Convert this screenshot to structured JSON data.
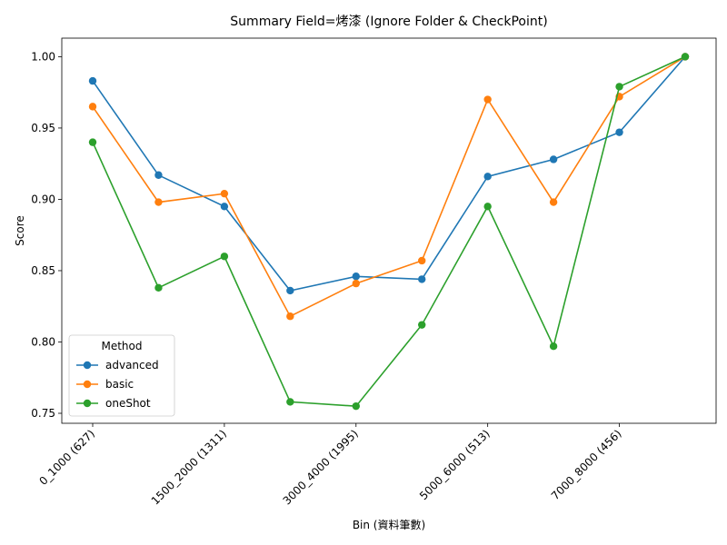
{
  "chart_data": {
    "type": "line",
    "title": "Summary Field=烤漆 (Ignore Folder & CheckPoint)",
    "xlabel": "Bin (資料筆數)",
    "ylabel": "Score",
    "x_tick_labels": [
      "0_1000 (627)",
      "1500_2000 (1311)",
      "3000_4000 (1995)",
      "5000_6000 (513)",
      "7000_8000 (456)"
    ],
    "x_tick_positions": [
      0,
      2,
      4,
      6,
      8
    ],
    "x_count": 10,
    "y_ticks": [
      "0.75",
      "0.80",
      "0.85",
      "0.90",
      "0.95",
      "1.00"
    ],
    "ylim": [
      0.743,
      1.013
    ],
    "legend": {
      "title": "Method",
      "placement": "lower-left"
    },
    "series": [
      {
        "name": "advanced",
        "color": "#1f77b4",
        "values": [
          0.983,
          0.917,
          0.895,
          0.836,
          0.846,
          0.844,
          0.916,
          0.928,
          0.947,
          1.0
        ]
      },
      {
        "name": "basic",
        "color": "#ff7f0e",
        "values": [
          0.965,
          0.898,
          0.904,
          0.818,
          0.841,
          0.857,
          0.97,
          0.898,
          0.972,
          1.0
        ]
      },
      {
        "name": "oneShot",
        "color": "#2ca02c",
        "values": [
          0.94,
          0.838,
          0.86,
          0.758,
          0.755,
          0.812,
          0.895,
          0.797,
          0.979,
          1.0
        ]
      }
    ]
  }
}
